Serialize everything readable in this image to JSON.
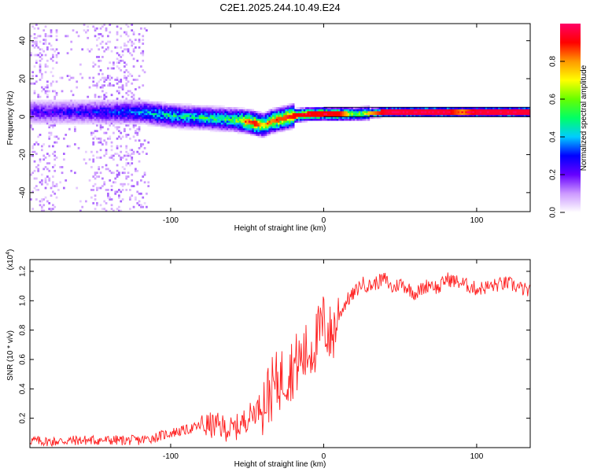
{
  "title": "C2E1.2025.244.10.49.E24",
  "chart_data": [
    {
      "type": "heatmap",
      "xlabel": "Height of straight line (km)",
      "ylabel": "Frequency (Hz)",
      "xlim": [
        -192,
        135
      ],
      "ylim": [
        -50,
        49
      ],
      "xticks": [
        -100,
        0,
        100
      ],
      "xtick_labels": [
        "-100",
        "0",
        "100"
      ],
      "yticks": [
        -40,
        -20,
        0,
        20,
        40
      ],
      "ytick_labels": [
        "-40",
        "-20",
        "0",
        "20",
        "40"
      ],
      "colorbar": {
        "label": "Normalized spectral amplitude",
        "range": [
          0,
          1
        ],
        "ticks": [
          0,
          0.2,
          0.4,
          0.6,
          0.8
        ],
        "tick_labels": [
          "0.0",
          "0.2",
          "0.4",
          "0.6",
          "0.8"
        ],
        "colors": [
          "#ffffff",
          "#cc99ff",
          "#6600ff",
          "#0000ff",
          "#00ccff",
          "#00ff66",
          "#66ff00",
          "#ffff00",
          "#ff9900",
          "#ff0000",
          "#ff0066"
        ]
      },
      "ridge_x": [
        -192,
        -150,
        -120,
        -100,
        -80,
        -60,
        -50,
        -45,
        -40,
        -35,
        -30,
        -25,
        -20,
        -10,
        0,
        10,
        20,
        40,
        60,
        80,
        90,
        100,
        135
      ],
      "ridge_y": [
        2,
        2,
        2,
        0,
        -1,
        -2,
        -3,
        -4,
        -5,
        -3,
        -2,
        -1,
        0,
        1,
        1,
        1,
        1,
        2,
        2,
        2,
        2,
        2,
        2
      ],
      "ridge_amplitude": [
        0.25,
        0.3,
        0.4,
        0.5,
        0.5,
        0.55,
        0.8,
        0.9,
        0.7,
        0.8,
        0.85,
        0.85,
        0.9,
        0.9,
        0.9,
        0.9,
        0.6,
        0.95,
        0.95,
        0.95,
        0.8,
        0.95,
        0.95
      ]
    },
    {
      "type": "line",
      "xlabel": "Height of straight line (km)",
      "ylabel": "SNR (10 * v/v)",
      "y_multiplier_label": "(x10",
      "y_multiplier_exp": "4",
      "y_multiplier_close": ")",
      "color": "#ff2020",
      "xlim": [
        -192,
        135
      ],
      "ylim": [
        0,
        1.28
      ],
      "xticks": [
        -100,
        0,
        100
      ],
      "xtick_labels": [
        "-100",
        "0",
        "100"
      ],
      "yticks": [
        0.2,
        0.4,
        0.6,
        0.8,
        1.0,
        1.2
      ],
      "ytick_labels": [
        "0.2",
        "0.4",
        "0.6",
        "0.8",
        "1.0",
        "1.2"
      ],
      "series": [
        {
          "name": "SNR",
          "x": [
            -192,
            -180,
            -160,
            -140,
            -120,
            -110,
            -100,
            -90,
            -80,
            -70,
            -60,
            -55,
            -50,
            -45,
            -40,
            -35,
            -30,
            -25,
            -20,
            -15,
            -10,
            -5,
            0,
            5,
            10,
            15,
            20,
            25,
            30,
            40,
            45,
            50,
            60,
            70,
            75,
            80,
            90,
            100,
            110,
            120,
            135
          ],
          "y": [
            0.05,
            0.04,
            0.05,
            0.05,
            0.05,
            0.07,
            0.1,
            0.12,
            0.15,
            0.15,
            0.12,
            0.15,
            0.2,
            0.25,
            0.3,
            0.38,
            0.45,
            0.5,
            0.55,
            0.6,
            0.65,
            0.72,
            0.85,
            0.75,
            0.9,
            1.0,
            1.05,
            1.12,
            1.1,
            1.15,
            1.08,
            1.12,
            1.05,
            1.12,
            1.08,
            1.15,
            1.12,
            1.08,
            1.1,
            1.12,
            1.06
          ]
        }
      ]
    }
  ]
}
